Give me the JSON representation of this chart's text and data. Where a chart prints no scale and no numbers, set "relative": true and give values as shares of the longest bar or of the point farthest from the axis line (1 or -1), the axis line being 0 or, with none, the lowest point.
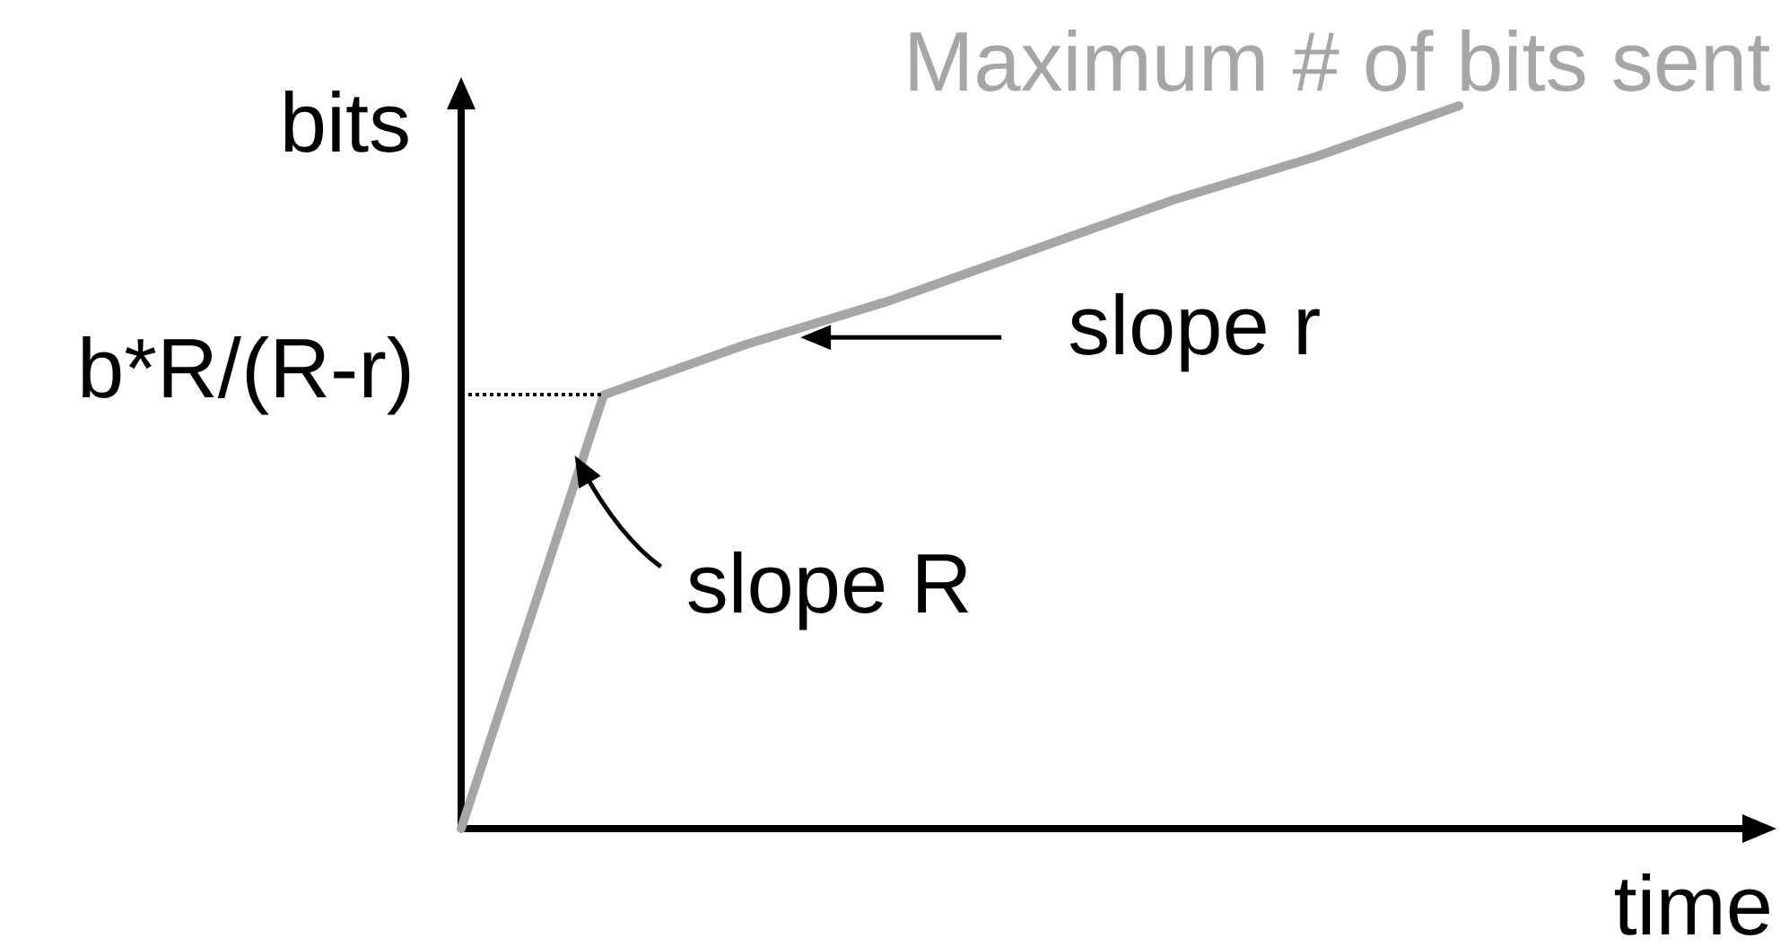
{
  "chart_data": {
    "type": "line",
    "relative": true,
    "categories": [
      null,
      null,
      null,
      null,
      null,
      null,
      null,
      null,
      null,
      null
    ],
    "series": [
      {
        "name": "Maximum # of bits sent",
        "color": "#a6a6a6",
        "values": [
          0,
          0.6,
          0.67,
          0.73,
          0.8,
          0.87,
          0.93,
          1,
          null,
          null
        ]
      }
    ],
    "xlabel": "time",
    "ylabel": "bits",
    "ref_lines": [
      {
        "axis": "y",
        "value": 0.6,
        "label": "b*R/(R-r)",
        "color": "#000000",
        "line_style": "dotted"
      }
    ],
    "annotations": [
      "slope r",
      "slope R"
    ],
    "marker": "none"
  }
}
